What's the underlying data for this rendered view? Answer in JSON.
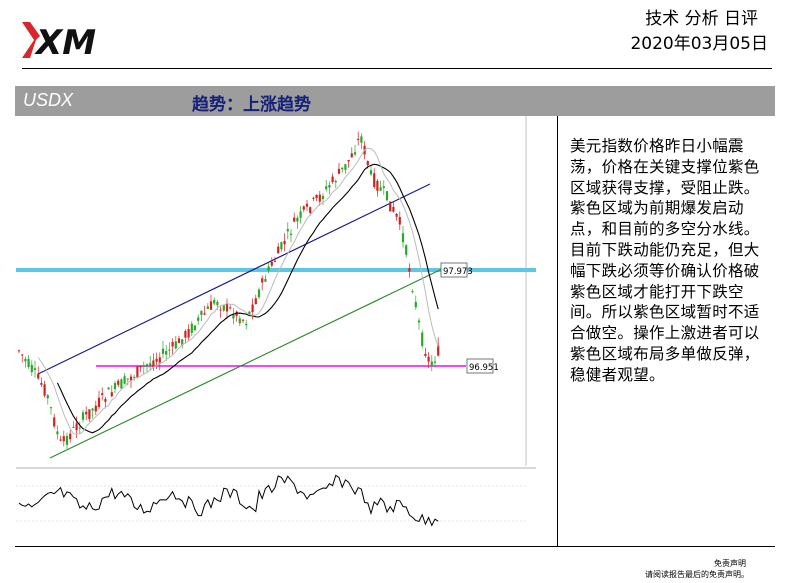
{
  "header": {
    "brand": "XM",
    "title": "技术 分析 日评",
    "date": "2020年03月05日"
  },
  "band": {
    "symbol": "USDX",
    "trend": "趋势：上涨趋势"
  },
  "chart": {
    "price_labels": {
      "upper_level": "97.973",
      "lower_level": "96.951"
    }
  },
  "commentary": "美元指数价格昨日小幅震荡，价格在关键支撑位紫色区域获得支撑，受阻止跌。紫色区域为前期爆发启动点，和目前的多空分水线。目前下跌动能仍充足，但大幅下跌必须等价确认价格破紫色区域才能打开下跌空间。所以紫色区域暂时不适合做空。操作上激进者可以紫色区域布局多单做反弹，稳健者观望。",
  "footer": {
    "line1": "免责声明",
    "line2": "请阅读报告最后的免责声明。"
  },
  "colors": {
    "band_bg": "#9d9d9d",
    "trend_text": "#16207a",
    "support_zone": "#ff00ff",
    "resistance_zone": "#5bc8e8",
    "channel_upper": "#1a1a8c",
    "channel_lower": "#2e8b2e"
  }
}
